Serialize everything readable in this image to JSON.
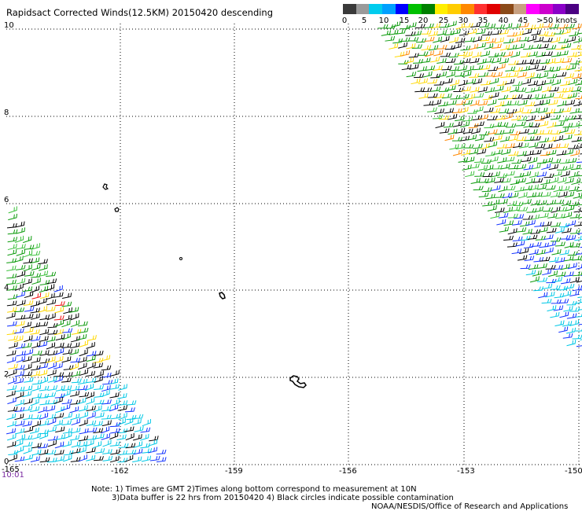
{
  "title": "Rapidsact Corrected Winds(12.5KM) 20150420 descending",
  "legend": {
    "colors": [
      "#3a3a3a",
      "#9a9a9a",
      "#00ccee",
      "#00a0ff",
      "#0000ff",
      "#00c000",
      "#008000",
      "#ffee00",
      "#ffcc00",
      "#ff8800",
      "#ff3030",
      "#e00000",
      "#8b4a18",
      "#c8a080",
      "#ff00ff",
      "#cc00cc",
      "#8a00c8",
      "#4b0082"
    ],
    "ticks": [
      "0",
      "5",
      "10",
      "15",
      "20",
      "25",
      "30",
      "35",
      "40",
      "45",
      ">50 knots"
    ],
    "unit": "knots"
  },
  "axes": {
    "y_labels": [
      "10",
      "8",
      "6",
      "4",
      "2",
      "0"
    ],
    "x_labels": [
      "-165",
      "-162",
      "-159",
      "-156",
      "-153",
      "-150"
    ]
  },
  "time_label": "10:01",
  "notes": [
    "Note: 1) Times are GMT 2)Times along bottom correspond to measurement at 10N",
    "3)Data buffer is 22 hrs from 20150420 4) Black circles indicate possible contamination",
    "NOAA/NESDIS/Office of Research and Applications"
  ],
  "swath_colors": {
    "black": "#000000",
    "gray": "#808080",
    "cyan": "#00c8e6",
    "blue": "#1030ff",
    "green": "#0a9a0a",
    "lightgreen": "#3ac03a",
    "yellow": "#ffd800",
    "orange": "#ff8800",
    "red": "#ee1010"
  }
}
